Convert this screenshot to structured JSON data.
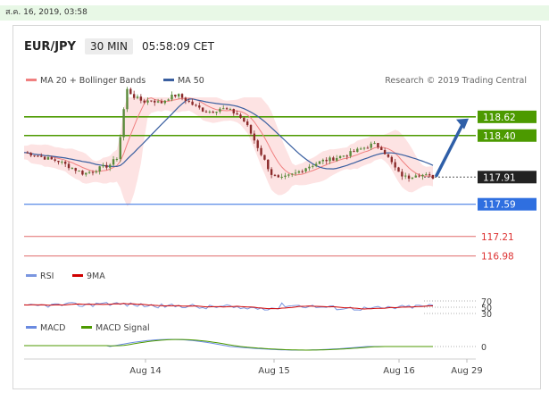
{
  "timestamp": "ส.ค. 16, 2019, 03:58",
  "header": {
    "pair": "EUR/JPY",
    "timeframe": "30 MIN",
    "time": "05:58:09 CET"
  },
  "colors": {
    "ma20": "#f08080",
    "bollinger_fill": "#fde3e3",
    "ma50": "#3a5fa0",
    "resistance": "#4c9a00",
    "current": "#222222",
    "pivot": "#2f6fe0",
    "support": "#e06a6a",
    "rsi": "#7a96e0",
    "rsi_ma": "#d00000",
    "macd": "#6a8ae0",
    "macd_signal": "#4c9a00",
    "arrow": "#2f5fa8"
  },
  "chart_data": [
    {
      "type": "line",
      "panel": "price",
      "legend": {
        "items": [
          {
            "name": "MA 20 + Bollinger Bands",
            "color": "#f08080"
          },
          {
            "name": "MA 50",
            "color": "#3a5fa0"
          }
        ]
      },
      "credit": "Research © 2019 Trading Central",
      "x_ticks": [
        "Aug 14",
        "Aug 15",
        "Aug 16",
        "Aug 29"
      ],
      "ylim": [
        116.85,
        118.85
      ],
      "levels": [
        {
          "label": "118.62",
          "value": 118.62,
          "kind": "resistance"
        },
        {
          "label": "118.40",
          "value": 118.4,
          "kind": "resistance"
        },
        {
          "label": "117.91",
          "value": 117.91,
          "kind": "current"
        },
        {
          "label": "117.59",
          "value": 117.59,
          "kind": "pivot"
        },
        {
          "label": "117.21",
          "value": 117.21,
          "kind": "support"
        },
        {
          "label": "116.98",
          "value": 116.98,
          "kind": "support"
        }
      ],
      "series": [
        {
          "name": "Price",
          "values": [
            118.2,
            118.18,
            118.15,
            118.12,
            118.1,
            118.05,
            118.0,
            117.95,
            117.98,
            118.02,
            118.05,
            118.15,
            118.95,
            118.85,
            118.8,
            118.82,
            118.78,
            118.85,
            118.88,
            118.82,
            118.75,
            118.7,
            118.68,
            118.72,
            118.7,
            118.65,
            118.55,
            118.35,
            118.15,
            117.95,
            117.88,
            117.92,
            117.96,
            118.02,
            118.06,
            118.1,
            118.12,
            118.15,
            118.18,
            118.22,
            118.26,
            118.3,
            118.25,
            118.1,
            117.95,
            117.9,
            117.95,
            117.93,
            117.91
          ]
        }
      ],
      "annotation": "arrow-up-towards-resistance"
    },
    {
      "type": "line",
      "panel": "rsi",
      "series": [
        {
          "name": "RSI",
          "color": "#7a96e0"
        },
        {
          "name": "9MA",
          "color": "#d00000"
        }
      ],
      "y_ticks": [
        "70",
        "50",
        "30"
      ]
    },
    {
      "type": "line",
      "panel": "macd",
      "series": [
        {
          "name": "MACD",
          "color": "#6a8ae0"
        },
        {
          "name": "MACD Signal",
          "color": "#4c9a00"
        }
      ],
      "y_ticks": [
        "0"
      ]
    }
  ]
}
